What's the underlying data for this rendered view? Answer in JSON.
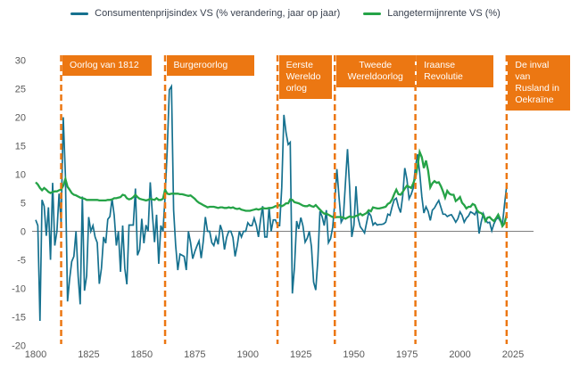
{
  "legend": {
    "items": [
      {
        "label": "Consumentenprijsindex VS (% verandering, jaar op jaar)",
        "color": "#16718F"
      },
      {
        "label": "Langetermijnrente VS (%)",
        "color": "#25A347"
      }
    ]
  },
  "colors": {
    "cpi_line": "#16718F",
    "rate_line": "#25A347",
    "event_orange": "#EC7712",
    "event_text": "#FFFFFF",
    "axis_text": "#595959",
    "zero_line": "#7F7F7F",
    "legend_text": "#39414F",
    "background": "#FFFFFF"
  },
  "chart_data": {
    "type": "line",
    "title": "",
    "xlabel": "",
    "ylabel": "",
    "x_years": {
      "start": 1800,
      "end": 2022,
      "step": 1
    },
    "xticks": [
      1800,
      1825,
      1850,
      1875,
      1900,
      1925,
      1950,
      1975,
      2000,
      2025
    ],
    "yticks": [
      30,
      25,
      20,
      15,
      10,
      5,
      0,
      -5,
      -10,
      -15,
      -20
    ],
    "ylim": [
      -20,
      30
    ],
    "xlim": [
      1800,
      2025
    ],
    "grid": "zero-line-only",
    "legend_position": "top-center",
    "series": [
      {
        "name": "Consumentenprijsindex VS (% verandering, jaar op jaar)",
        "color": "#16718F",
        "values": [
          2,
          1,
          -15.7,
          5.5,
          4.4,
          -0.8,
          4.2,
          -5,
          8.5,
          -2.5,
          0,
          6.6,
          1.5,
          20,
          9.8,
          -12.3,
          -8.4,
          -5.3,
          -4.4,
          0,
          -7.9,
          -12.8,
          6.1,
          -10.4,
          -7.8,
          2.5,
          0,
          1,
          -1,
          -2,
          -9.2,
          -6.5,
          -1,
          -2.1,
          2.1,
          2.6,
          5.7,
          2.8,
          -2.5,
          0,
          -7.1,
          1,
          -6.5,
          -9.3,
          1.1,
          1.1,
          1.1,
          7.5,
          -4.2,
          -3.2,
          2.2,
          -2.1,
          1.1,
          0,
          8.6,
          3,
          -1.9,
          2.9,
          -5.7,
          1,
          0,
          6,
          14.2,
          24.8,
          25.4,
          3.7,
          -2.5,
          -6.8,
          -4,
          -4.2,
          -4.4,
          -6.8,
          0,
          -2,
          -4.8,
          -3.6,
          -2.6,
          -1.7,
          -4.7,
          -1.8,
          2.5,
          0,
          0,
          -2,
          -2.5,
          -1,
          -2.3,
          1.1,
          0,
          -3.2,
          -1.1,
          0,
          0,
          -1.1,
          -4.4,
          -2.5,
          0,
          -1,
          0,
          0,
          1.5,
          1,
          1,
          2.3,
          1,
          -1,
          2,
          4.4,
          -1,
          -1,
          4.2,
          0,
          2,
          2,
          1,
          1,
          7.7,
          20.4,
          17.3,
          15.2,
          15.6,
          -10.9,
          -6.2,
          1.8,
          0.4,
          2.4,
          0.9,
          -1.9,
          -1.2,
          0,
          -2.7,
          -8.9,
          -10.3,
          -5.2,
          3.5,
          2.6,
          1,
          3.7,
          -2,
          -1.3,
          0.7,
          5.1,
          10.9,
          6,
          1.6,
          2.3,
          8.5,
          14.4,
          7.7,
          -1,
          1.1,
          7.9,
          2.3,
          0.8,
          0.3,
          -0.3,
          1.5,
          3.3,
          2.7,
          1.1,
          1.5,
          1.1,
          1.2,
          1.2,
          1.3,
          1.6,
          3,
          2.8,
          4.3,
          5.5,
          5.8,
          4.3,
          3.3,
          6.2,
          11.1,
          9.1,
          5.7,
          6.5,
          7.6,
          11.3,
          13.5,
          10.3,
          6.1,
          3.2,
          4.3,
          3.5,
          1.9,
          3.7,
          4.1,
          4.8,
          5.4,
          4.2,
          3,
          3,
          2.6,
          2.8,
          2.9,
          2.3,
          1.6,
          2.2,
          3.4,
          2.8,
          1.6,
          2.3,
          2.7,
          3.4,
          3.2,
          2.9,
          3.8,
          -0.4,
          1.6,
          3.1,
          2.1,
          1.5,
          1.6,
          0.1,
          1.3,
          2.1,
          2.4,
          1.8,
          1.2,
          4.7,
          8
        ]
      },
      {
        "name": "Langetermijnrente VS (%)",
        "color": "#25A347",
        "values": [
          8.6,
          8.2,
          7.6,
          7.2,
          7.6,
          7.3,
          6.9,
          6.7,
          6.9,
          7,
          7,
          7.2,
          7.3,
          8,
          9.2,
          7.8,
          7.3,
          6.7,
          6.4,
          6.3,
          6.1,
          5.9,
          5.8,
          5.7,
          5.5,
          5.5,
          5.5,
          5.5,
          5.5,
          5.5,
          5.4,
          5.4,
          5.4,
          5.4,
          5.5,
          5.5,
          5.6,
          5.8,
          5.8,
          5.9,
          6,
          6.4,
          6.3,
          5.8,
          5.6,
          5.7,
          6,
          6.4,
          6,
          5.7,
          5.6,
          5.5,
          5.4,
          5.5,
          5.7,
          5.6,
          5.5,
          5.8,
          5.5,
          5.5,
          5.7,
          7.3,
          6.6,
          6.5,
          6.6,
          6.6,
          6.6,
          6.6,
          6.5,
          6.5,
          6.4,
          6.3,
          6.2,
          6.3,
          6,
          5.7,
          5.3,
          5,
          4.8,
          4.6,
          4.4,
          4.2,
          4.3,
          4.3,
          4.3,
          4.2,
          4.1,
          4.2,
          4.2,
          4.1,
          4.1,
          4.2,
          4.1,
          4.2,
          4,
          3.9,
          4,
          3.8,
          3.7,
          3.6,
          3.6,
          3.6,
          3.7,
          3.8,
          3.9,
          3.8,
          3.9,
          4.1,
          4,
          4,
          4.1,
          4.1,
          4.2,
          4.4,
          4.4,
          4.6,
          4.4,
          4.6,
          4.9,
          4.9,
          5.6,
          5.5,
          5.1,
          5,
          4.9,
          4.7,
          4.5,
          4.4,
          4.4,
          4.6,
          4.4,
          4.3,
          4.6,
          4.2,
          3.8,
          3.4,
          3.1,
          3.1,
          2.9,
          2.7,
          2.5,
          2.4,
          2.5,
          2.5,
          2.5,
          2.4,
          2.2,
          2.4,
          2.6,
          2.5,
          2.5,
          2.7,
          2.8,
          3.1,
          2.8,
          3,
          3.2,
          3.7,
          3.5,
          4.2,
          4.1,
          4,
          4,
          4.1,
          4.2,
          4.3,
          4.8,
          5,
          5.6,
          6.5,
          7.3,
          6.5,
          6.4,
          6.9,
          7.5,
          8,
          7.8,
          7.6,
          8.4,
          9.4,
          11.4,
          13.9,
          13,
          11.1,
          12.4,
          10.6,
          7.7,
          8.4,
          8.8,
          8.5,
          8.6,
          7.9,
          7,
          5.9,
          7.1,
          6.6,
          6.4,
          6.4,
          5.3,
          5.6,
          6,
          5,
          4.6,
          4,
          4.3,
          4.3,
          4.8,
          4.6,
          3.7,
          3.3,
          3.2,
          2.8,
          1.8,
          2.4,
          2.5,
          2.1,
          1.8,
          2.3,
          2.9,
          2.1,
          0.9,
          1.4,
          3
        ]
      }
    ],
    "annotations": [
      {
        "label": "Oorlog van 1812",
        "lines": [
          "Oorlog van 1812"
        ],
        "year": 1812
      },
      {
        "label": "Burgeroorlog",
        "lines": [
          "Burgeroorlog"
        ],
        "year": 1861
      },
      {
        "label": "Eerste Wereldoorlog",
        "lines": [
          "Eerste",
          "Wereldo",
          "orlog"
        ],
        "year": 1914
      },
      {
        "label": "Tweede Wereldoorlog",
        "lines": [
          "Tweede",
          "Wereldoorlog"
        ],
        "year": 1941
      },
      {
        "label": "Iraanse Revolutie",
        "lines": [
          "Iraanse",
          "Revolutie"
        ],
        "year": 1979
      },
      {
        "label": "De inval van Rusland in Oekraïne",
        "lines": [
          "De inval",
          "van",
          "Rusland in",
          "Oekraïne"
        ],
        "year": 2022
      }
    ]
  }
}
